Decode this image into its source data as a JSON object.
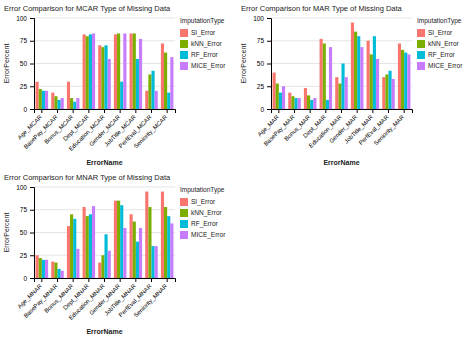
{
  "chart_data": [
    {
      "type": "bar",
      "title": "Error Comparison for MCAR Type of Missing Data",
      "xlabel": "ErrorName",
      "ylabel": "ErrorPercent",
      "legend_title": "ImputationType",
      "categories": [
        "Age_MCAR",
        "BasePay_MCAR",
        "Bonus_MCAR",
        "Dept_MCAR",
        "Education_MCAR",
        "Gender_MCAR",
        "JobTitle_MCAR",
        "PerfEval_MCAR",
        "Seniority_MCAR"
      ],
      "series": [
        {
          "name": "SI_Error",
          "color": "#F8766D",
          "values": [
            30,
            18,
            30,
            82,
            70,
            82,
            83,
            20,
            72
          ]
        },
        {
          "name": "kNN_Error",
          "color": "#7CAE00",
          "values": [
            22,
            14,
            12,
            80,
            68,
            83,
            83,
            38,
            62
          ]
        },
        {
          "name": "RF_Error",
          "color": "#00BCD8",
          "values": [
            20,
            10,
            8,
            82,
            70,
            30,
            55,
            42,
            18
          ]
        },
        {
          "name": "MICE_Error",
          "color": "#C77CFF",
          "values": [
            20,
            12,
            12,
            83,
            55,
            83,
            77,
            20,
            57
          ]
        }
      ],
      "ylim": [
        0,
        100
      ],
      "yticks": [
        0,
        25,
        50,
        75,
        100
      ],
      "grid": true,
      "legend": "right"
    },
    {
      "type": "bar",
      "title": "Error Comparison for MAR Type of Missing Data",
      "xlabel": "ErrorName",
      "ylabel": "ErrorPercent",
      "legend_title": "ImputationType",
      "categories": [
        "Age_MAR",
        "BasePay_MAR",
        "Bonus_MAR",
        "Dept_MAR",
        "Education_MAR",
        "Gender_MAR",
        "JobTitle_MAR",
        "PerfEval_MAR",
        "Seniority_MAR"
      ],
      "series": [
        {
          "name": "SI_Error",
          "color": "#F8766D",
          "values": [
            40,
            18,
            23,
            77,
            35,
            95,
            75,
            35,
            72
          ]
        },
        {
          "name": "kNN_Error",
          "color": "#7CAE00",
          "values": [
            28,
            14,
            15,
            72,
            28,
            85,
            60,
            38,
            65
          ]
        },
        {
          "name": "RF_Error",
          "color": "#00BCD8",
          "values": [
            18,
            12,
            10,
            10,
            50,
            80,
            80,
            42,
            62
          ]
        },
        {
          "name": "MICE_Error",
          "color": "#C77CFF",
          "values": [
            25,
            12,
            12,
            68,
            35,
            68,
            55,
            33,
            60
          ]
        }
      ],
      "ylim": [
        0,
        100
      ],
      "yticks": [
        0,
        25,
        50,
        75,
        100
      ],
      "grid": true,
      "legend": "right"
    },
    {
      "type": "bar",
      "title": "Error Comparison for MNAR Type of Missing Data",
      "xlabel": "ErrorName",
      "ylabel": "ErrorPercent",
      "legend_title": "ImputationType",
      "categories": [
        "Age_MNAR",
        "BasePay_MNAR",
        "Bonus_MNAR",
        "Dept_MNAR",
        "Education_MNAR",
        "Gender_MNAR",
        "JobTitle_MNAR",
        "PerfEval_MNAR",
        "Seniority_MNAR"
      ],
      "series": [
        {
          "name": "SI_Error",
          "color": "#F8766D",
          "values": [
            25,
            18,
            57,
            78,
            17,
            85,
            70,
            95,
            95
          ]
        },
        {
          "name": "kNN_Error",
          "color": "#7CAE00",
          "values": [
            22,
            17,
            70,
            68,
            25,
            85,
            62,
            78,
            78
          ]
        },
        {
          "name": "RF_Error",
          "color": "#00BCD8",
          "values": [
            20,
            10,
            65,
            70,
            48,
            80,
            40,
            35,
            68
          ]
        },
        {
          "name": "MICE_Error",
          "color": "#C77CFF",
          "values": [
            20,
            8,
            32,
            79,
            30,
            55,
            55,
            35,
            60
          ]
        }
      ],
      "ylim": [
        0,
        100
      ],
      "yticks": [
        0,
        25,
        50,
        75,
        100
      ],
      "grid": true,
      "legend": "right"
    }
  ]
}
